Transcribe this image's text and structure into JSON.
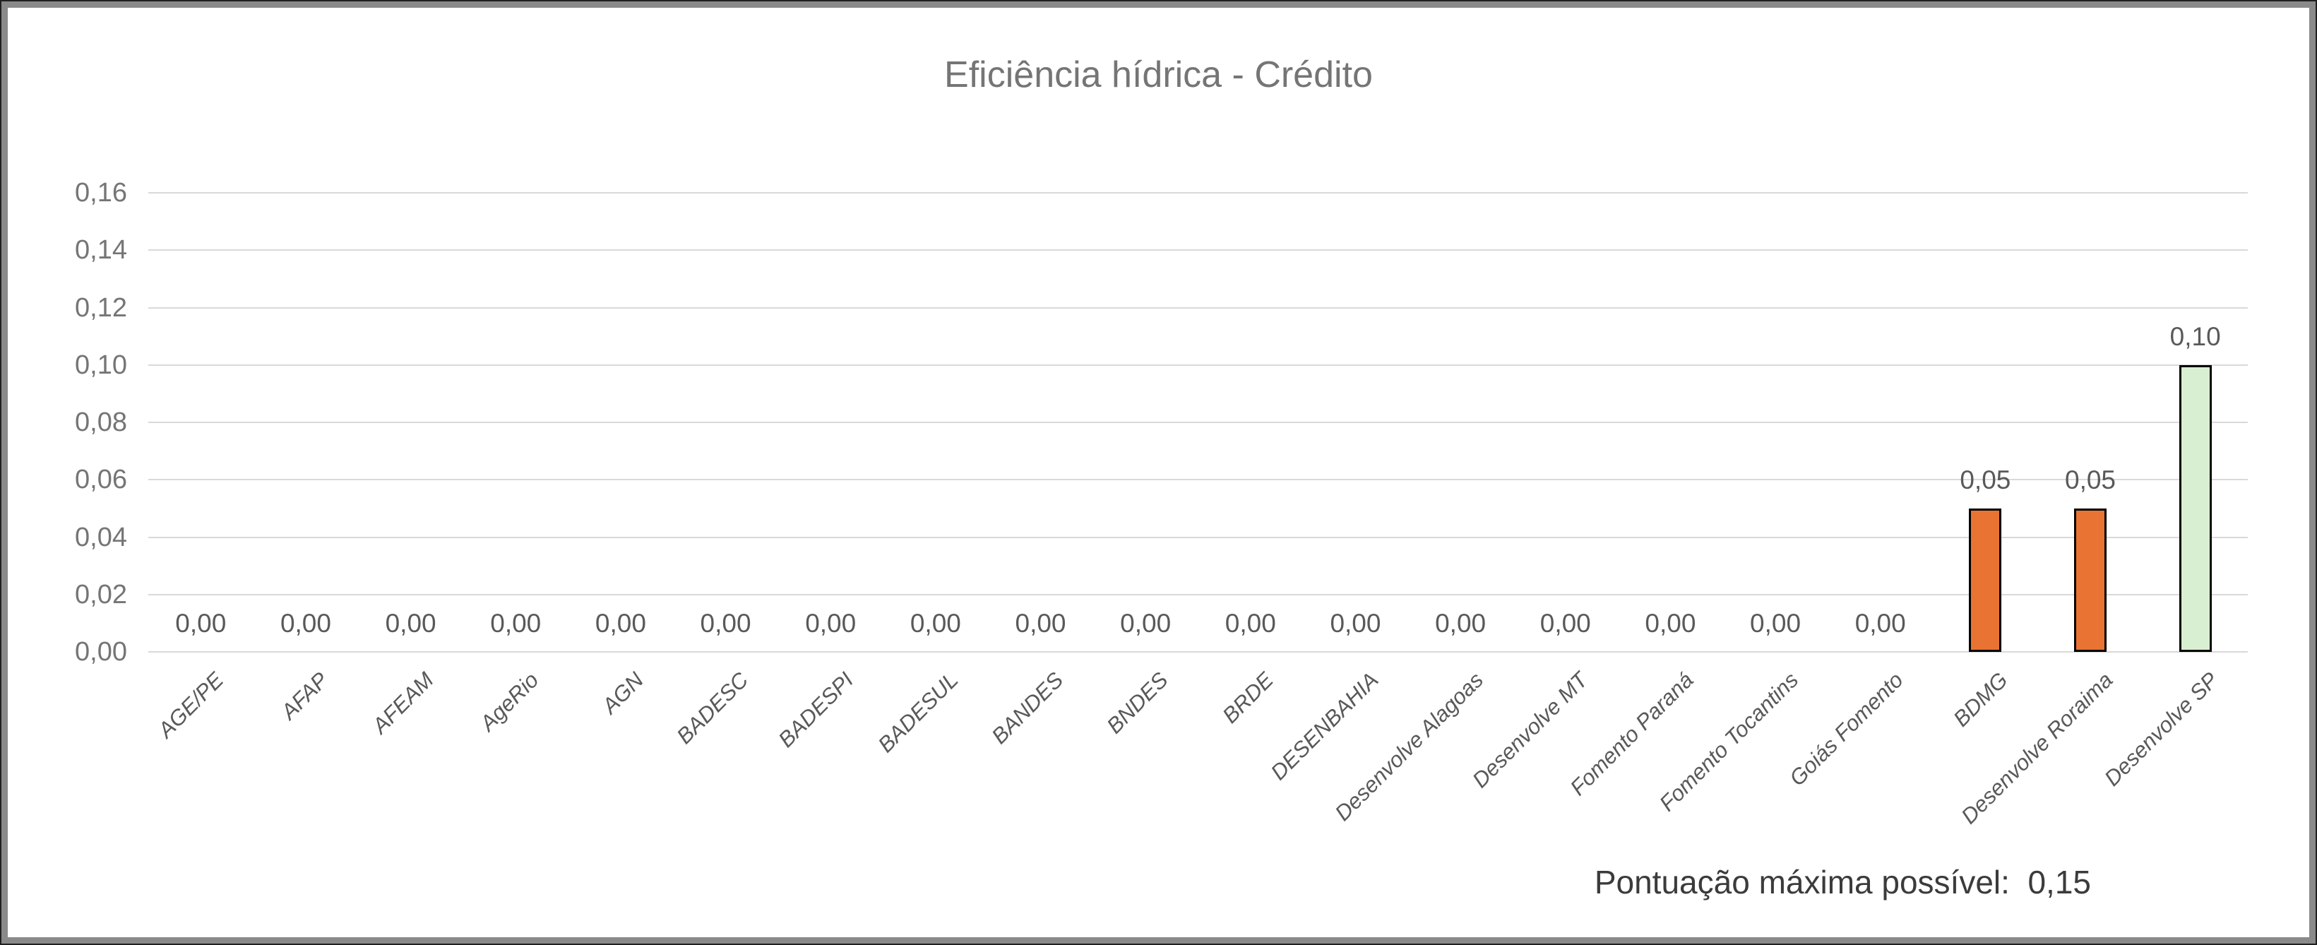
{
  "chart_data": {
    "type": "bar",
    "title": "Eficiência hídrica - Crédito",
    "annotation": "Pontuação máxima possível:  0,15",
    "ylim": [
      0,
      0.16
    ],
    "ytick_step": 0.02,
    "grid": true,
    "legend": false,
    "decimal_style": "comma",
    "y_ticks": [
      {
        "value": 0.16,
        "label": "0,16"
      },
      {
        "value": 0.14,
        "label": "0,14"
      },
      {
        "value": 0.12,
        "label": "0,12"
      },
      {
        "value": 0.1,
        "label": "0,10"
      },
      {
        "value": 0.08,
        "label": "0,08"
      },
      {
        "value": 0.06,
        "label": "0,06"
      },
      {
        "value": 0.04,
        "label": "0,04"
      },
      {
        "value": 0.02,
        "label": "0,02"
      },
      {
        "value": 0.0,
        "label": "0,00"
      }
    ],
    "categories": [
      "AGE/PE",
      "AFAP",
      "AFEAM",
      "AgeRio",
      "AGN",
      "BADESC",
      "BADESPI",
      "BADESUL",
      "BANDES",
      "BNDES",
      "BRDE",
      "DESENBAHIA",
      "Desenvolve Alagoas",
      "Desenvolve MT",
      "Fomento Paraná",
      "Fomento Tocantins",
      "Goiás Fomento",
      "BDMG",
      "Desenvolve Roraima",
      "Desenvolve SP"
    ],
    "points": [
      {
        "label": "AGE/PE",
        "value": 0.0,
        "display": "0,00",
        "color": null
      },
      {
        "label": "AFAP",
        "value": 0.0,
        "display": "0,00",
        "color": null
      },
      {
        "label": "AFEAM",
        "value": 0.0,
        "display": "0,00",
        "color": null
      },
      {
        "label": "AgeRio",
        "value": 0.0,
        "display": "0,00",
        "color": null
      },
      {
        "label": "AGN",
        "value": 0.0,
        "display": "0,00",
        "color": null
      },
      {
        "label": "BADESC",
        "value": 0.0,
        "display": "0,00",
        "color": null
      },
      {
        "label": "BADESPI",
        "value": 0.0,
        "display": "0,00",
        "color": null
      },
      {
        "label": "BADESUL",
        "value": 0.0,
        "display": "0,00",
        "color": null
      },
      {
        "label": "BANDES",
        "value": 0.0,
        "display": "0,00",
        "color": null
      },
      {
        "label": "BNDES",
        "value": 0.0,
        "display": "0,00",
        "color": null
      },
      {
        "label": "BRDE",
        "value": 0.0,
        "display": "0,00",
        "color": null
      },
      {
        "label": "DESENBAHIA",
        "value": 0.0,
        "display": "0,00",
        "color": null
      },
      {
        "label": "Desenvolve Alagoas",
        "value": 0.0,
        "display": "0,00",
        "color": null
      },
      {
        "label": "Desenvolve MT",
        "value": 0.0,
        "display": "0,00",
        "color": null
      },
      {
        "label": "Fomento Paraná",
        "value": 0.0,
        "display": "0,00",
        "color": null
      },
      {
        "label": "Fomento Tocantins",
        "value": 0.0,
        "display": "0,00",
        "color": null
      },
      {
        "label": "Goiás Fomento",
        "value": 0.0,
        "display": "0,00",
        "color": null
      },
      {
        "label": "BDMG",
        "value": 0.05,
        "display": "0,05",
        "color": "#E87332"
      },
      {
        "label": "Desenvolve Roraima",
        "value": 0.05,
        "display": "0,05",
        "color": "#E87332"
      },
      {
        "label": "Desenvolve SP",
        "value": 0.1,
        "display": "0,10",
        "color": "#D9EFD1"
      }
    ]
  },
  "palette": {
    "bar_orange": "#E87332",
    "bar_green": "#D9EFD1",
    "bar_border": "#000000",
    "gridline": "#D9D9D9",
    "axis_text": "#757575",
    "label_text": "#595959",
    "title_text": "#757575",
    "annotation_text": "#3B3B3B",
    "frame_border": "#8A8A8A"
  }
}
